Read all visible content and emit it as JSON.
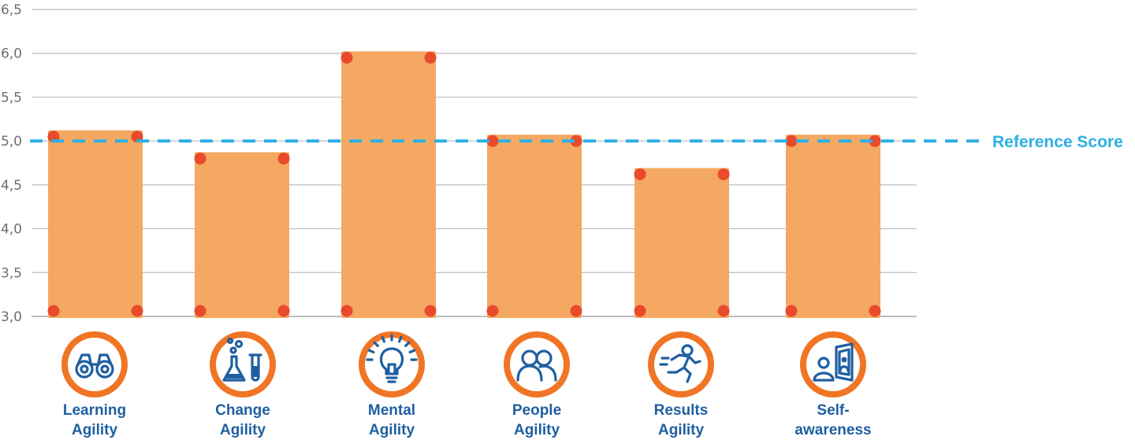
{
  "chart_data": {
    "type": "bar",
    "categories": [
      "Learning Agility",
      "Change Agility",
      "Mental Agility",
      "People Agility",
      "Results Agility",
      "Self-awareness"
    ],
    "category_lines": [
      [
        "Learning",
        "Agility"
      ],
      [
        "Change",
        "Agility"
      ],
      [
        "Mental",
        "Agility"
      ],
      [
        "People",
        "Agility"
      ],
      [
        "Results",
        "Agility"
      ],
      [
        "Self-",
        "awareness"
      ]
    ],
    "values": [
      5.05,
      4.8,
      5.95,
      5.0,
      4.62,
      5.0
    ],
    "ylim": [
      3.0,
      6.5
    ],
    "yticks": [
      "3,0",
      "3,5",
      "4,0",
      "4,5",
      "5,0",
      "5,5",
      "6,0",
      "6,5"
    ],
    "ytick_values": [
      3.0,
      3.5,
      4.0,
      4.5,
      5.0,
      5.5,
      6.0,
      6.5
    ],
    "grid": true,
    "reference_line": {
      "value": 5.0,
      "label": "Reference Score"
    },
    "icons": [
      "binoculars-icon",
      "flask-icon",
      "lightbulb-icon",
      "people-icon",
      "runner-icon",
      "mirror-icon"
    ],
    "colors": {
      "bar": "#f4a862",
      "bar_dot": "#e94a2c",
      "icon_circle": "#f07525",
      "icon": "#1f5fa0",
      "reference": "#2eb0e4",
      "grid": "#bdbdbd",
      "category_text": "#1f5fa0"
    }
  }
}
